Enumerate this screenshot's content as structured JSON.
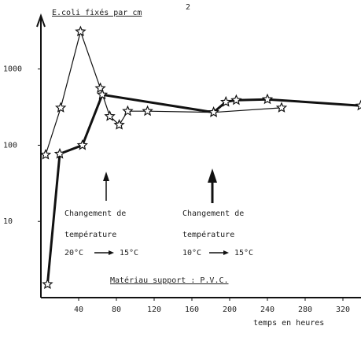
{
  "chart_data": {
    "type": "line",
    "title": "E.coli fixés par cm",
    "title_sup": "2",
    "xlabel": "temps en heures",
    "annotations": [
      "Changement de",
      "température",
      "20°C",
      "15°C",
      "Changement de",
      "température",
      "10°C",
      "15°C",
      "Matériau support : P.V.C."
    ],
    "log_y": true,
    "xlim": [
      0,
      340
    ],
    "xticks": [
      40,
      80,
      120,
      160,
      200,
      240,
      280,
      320
    ],
    "ylim": [
      1,
      5000
    ],
    "yticks": [
      10,
      100,
      1000
    ],
    "series": [
      {
        "color": "#111111",
        "width": 1.2,
        "x": [
          5,
          21,
          42,
          63,
          73,
          83,
          92,
          113,
          183,
          255
        ],
        "values": [
          75,
          310,
          3100,
          560,
          240,
          185,
          280,
          280,
          270,
          310
        ]
      },
      {
        "color": "#111111",
        "width": 3,
        "x": [
          7,
          20,
          44,
          65,
          183,
          196,
          207,
          240,
          339
        ],
        "values": [
          1.5,
          77,
          100,
          460,
          270,
          370,
          390,
          400,
          330
        ]
      }
    ]
  }
}
